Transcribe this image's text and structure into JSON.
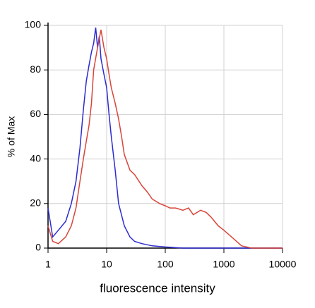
{
  "chart_data": {
    "type": "line",
    "x_label": "fluorescence intensity",
    "y_label": "% of Max",
    "xscale": "log",
    "xlim": [
      1,
      10000
    ],
    "xticks": [
      1,
      10,
      100,
      1000,
      10000
    ],
    "ylim": [
      0,
      100
    ],
    "yticks": [
      0,
      20,
      40,
      60,
      80,
      100
    ],
    "grid": true,
    "series": [
      {
        "color": "#2b2bd0",
        "x": [
          1,
          1.2,
          1.5,
          2,
          2.5,
          3,
          3.5,
          4,
          4.5,
          5,
          5.5,
          6,
          6.5,
          7,
          7.5,
          8,
          9,
          10,
          11,
          12,
          14,
          16,
          20,
          25,
          30,
          40,
          60,
          100,
          200,
          10000
        ],
        "values": [
          18,
          5,
          8,
          12,
          20,
          30,
          45,
          62,
          75,
          82,
          88,
          92,
          99,
          90,
          95,
          85,
          78,
          72,
          60,
          50,
          35,
          20,
          10,
          5,
          3,
          2,
          1,
          0.5,
          0,
          0
        ]
      },
      {
        "color": "#d8453a",
        "x": [
          1,
          1.2,
          1.5,
          2,
          2.5,
          3,
          3.5,
          4,
          4.5,
          5,
          5.5,
          6,
          7,
          8,
          9,
          10,
          11,
          12,
          14,
          16,
          18,
          20,
          25,
          30,
          40,
          50,
          60,
          80,
          100,
          120,
          150,
          200,
          250,
          300,
          400,
          500,
          600,
          800,
          1000,
          1500,
          2000,
          3000,
          10000
        ],
        "values": [
          10,
          3,
          2,
          5,
          10,
          18,
          30,
          40,
          48,
          55,
          65,
          80,
          90,
          98,
          90,
          85,
          78,
          72,
          65,
          58,
          50,
          42,
          35,
          33,
          28,
          25,
          22,
          20,
          19,
          18,
          18,
          17,
          18,
          15,
          17,
          16,
          14,
          10,
          8,
          4,
          1,
          0,
          0
        ]
      }
    ]
  }
}
